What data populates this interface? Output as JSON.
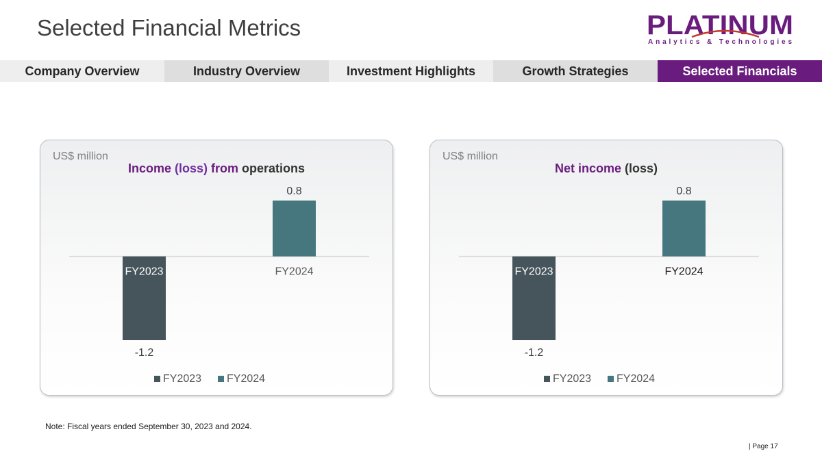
{
  "page": {
    "title": "Selected Financial Metrics",
    "note": "Note: Fiscal years ended September 30, 2023 and 2024.",
    "page_number": "| Page 17"
  },
  "logo": {
    "name": "PLATINUM",
    "tagline": "Analytics & Technologies",
    "color": "#6a1b7e",
    "accent": "#c0392b"
  },
  "nav": {
    "tabs": [
      {
        "label": "Company Overview"
      },
      {
        "label": "Industry Overview"
      },
      {
        "label": "Investment Highlights"
      },
      {
        "label": "Growth Strategies"
      },
      {
        "label": "Selected Financials"
      }
    ],
    "active_index": 4,
    "active_color": "#6a1b7e"
  },
  "chart_data": [
    {
      "type": "bar",
      "unit": "US$ million",
      "title_parts": [
        {
          "text": "Income ",
          "color": "#6a1b7e"
        },
        {
          "text": "(loss) ",
          "color": "#7030a0"
        },
        {
          "text": "from ",
          "color": "#6a1b7e"
        },
        {
          "text": "operations",
          "color": "#333333"
        }
      ],
      "categories": [
        "FY2023",
        "FY2024"
      ],
      "values": [
        -1.2,
        0.8
      ],
      "data_labels": [
        "-1.2",
        "0.8"
      ],
      "colors": [
        "#46555b",
        "#46777f"
      ],
      "legend": [
        "FY2023",
        "FY2024"
      ],
      "legend_position": "bottom",
      "ylim": [
        -1.2,
        0.8
      ],
      "grid": false
    },
    {
      "type": "bar",
      "unit": "US$ million",
      "title_parts": [
        {
          "text": "Net income ",
          "color": "#6a1b7e"
        },
        {
          "text": "(loss)",
          "color": "#333333"
        }
      ],
      "categories": [
        "FY2023",
        "FY2024"
      ],
      "values": [
        -1.2,
        0.8
      ],
      "data_labels": [
        "-1.2",
        "0.8"
      ],
      "colors": [
        "#46555b",
        "#46777f"
      ],
      "legend": [
        "FY2023",
        "FY2024"
      ],
      "legend_position": "bottom",
      "ylim": [
        -1.2,
        0.8
      ],
      "grid": false
    }
  ]
}
